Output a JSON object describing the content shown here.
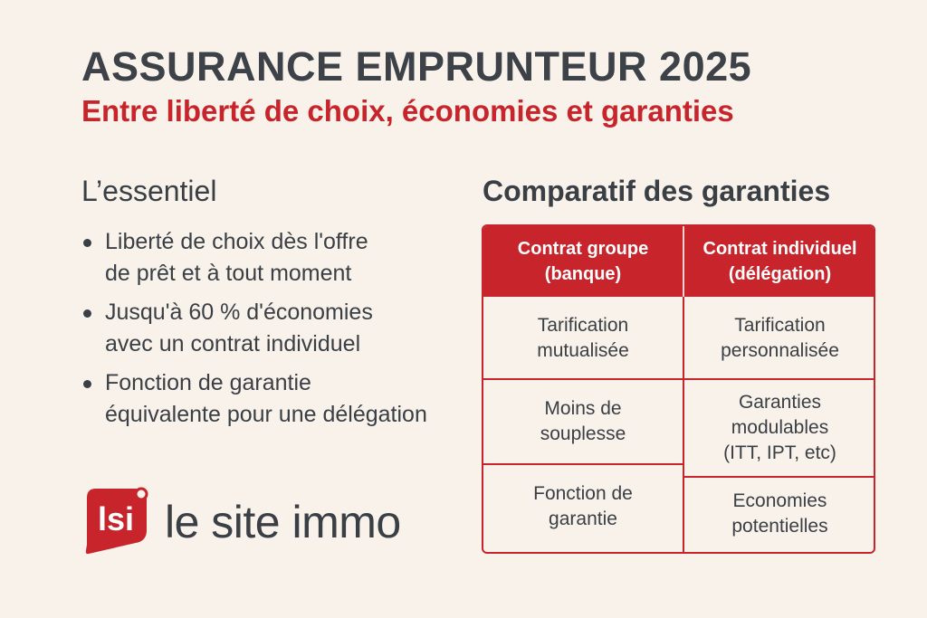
{
  "title": "ASSURANCE EMPRUNTEUR 2025",
  "subtitle": "Entre liberté de choix, économies et garanties",
  "essentiel": {
    "heading": "L’essentiel",
    "bullets": [
      [
        "Liberté de choix dès l'offre",
        "de prêt et à tout moment"
      ],
      [
        "Jusqu'à 60 % d'économies",
        "avec un contrat individuel"
      ],
      [
        "Fonction de garantie",
        "équivalente pour une délégation"
      ]
    ]
  },
  "comparatif": {
    "heading": "Comparatif des garanties",
    "headers": [
      {
        "line1": "Contrat groupe",
        "line2": "(banque)"
      },
      {
        "line1": "Contrat individuel",
        "line2": "(délégation)"
      }
    ],
    "left_cells": [
      [
        "Tarification",
        "mutualisée"
      ],
      [
        "Moins de",
        "souplesse"
      ],
      [
        "Fonction de",
        "garantie"
      ]
    ],
    "right_cells": [
      [
        "Tarification",
        "personnalisée"
      ],
      [
        "Garanties",
        "modulables",
        "(ITT, IPT, etc)"
      ],
      [
        "Economies",
        "potentielles"
      ]
    ]
  },
  "logo": {
    "mark_text": "lsi",
    "name": "le site immo",
    "brand_color": "#c8242b"
  },
  "colors": {
    "accent": "#c8242b",
    "text": "#3a3f45",
    "background": "#f8f2ea"
  }
}
